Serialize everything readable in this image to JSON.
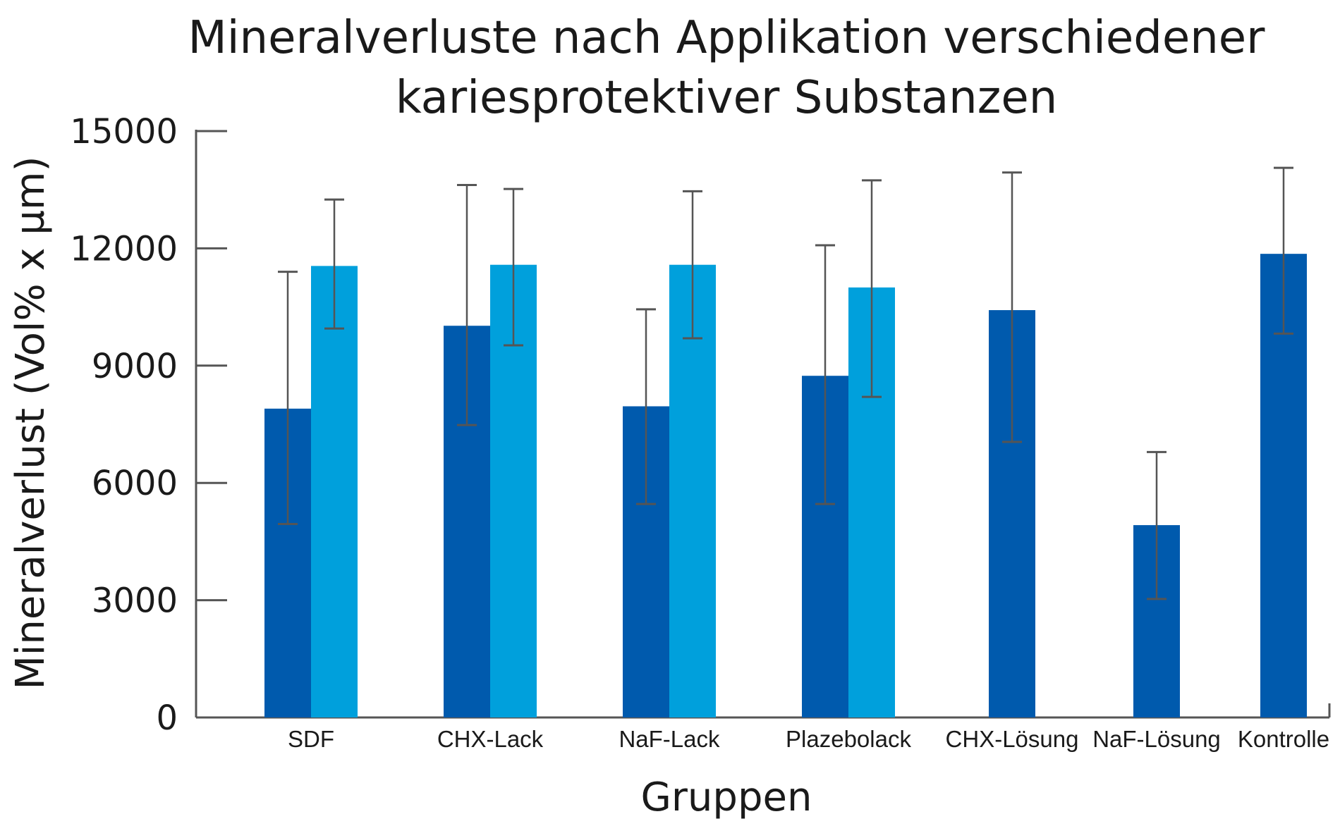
{
  "chart_data": {
    "type": "bar",
    "title_lines": [
      "Mineralverluste nach Applikation verschiedener",
      "kariesprotektiver Substanzen"
    ],
    "xlabel": "Gruppen",
    "ylabel": "Mineralverlust (Vol% x µm)",
    "ylim": [
      0,
      15000
    ],
    "yticks": [
      0,
      3000,
      6000,
      9000,
      12000,
      15000
    ],
    "grid": false,
    "legend": "none",
    "colors": {
      "series_a": "#005aad",
      "series_b": "#00a0dc",
      "error_bar": "#555555",
      "axis": "#555555"
    },
    "groups": [
      {
        "label": "SDF",
        "bars": [
          {
            "series": "a",
            "value": 7900,
            "err_low": 4950,
            "err_high": 11400
          },
          {
            "series": "b",
            "value": 11550,
            "err_low": 9950,
            "err_high": 13250
          }
        ]
      },
      {
        "label": "CHX-Lack",
        "bars": [
          {
            "series": "a",
            "value": 10020,
            "err_low": 7480,
            "err_high": 13620
          },
          {
            "series": "b",
            "value": 11580,
            "err_low": 9520,
            "err_high": 13520
          }
        ]
      },
      {
        "label": "NaF-Lack",
        "bars": [
          {
            "series": "a",
            "value": 7960,
            "err_low": 5460,
            "err_high": 10440
          },
          {
            "series": "b",
            "value": 11580,
            "err_low": 9700,
            "err_high": 13460
          }
        ]
      },
      {
        "label": "Plazebolack",
        "bars": [
          {
            "series": "a",
            "value": 8740,
            "err_low": 5460,
            "err_high": 12080
          },
          {
            "series": "b",
            "value": 11000,
            "err_low": 8200,
            "err_high": 13740
          }
        ]
      },
      {
        "label": "CHX-Lösung",
        "bars": [
          {
            "series": "a",
            "value": 10420,
            "err_low": 7050,
            "err_high": 13940
          }
        ]
      },
      {
        "label": "NaF-Lösung",
        "bars": [
          {
            "series": "a",
            "value": 4920,
            "err_low": 3030,
            "err_high": 6790
          }
        ]
      },
      {
        "label": "Kontrolle",
        "bars": [
          {
            "series": "a",
            "value": 11860,
            "err_low": 9820,
            "err_high": 14060
          }
        ]
      }
    ]
  }
}
